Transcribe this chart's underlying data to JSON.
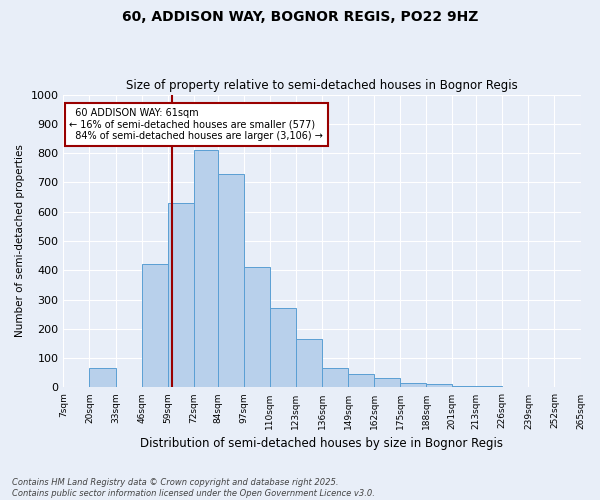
{
  "title": "60, ADDISON WAY, BOGNOR REGIS, PO22 9HZ",
  "subtitle": "Size of property relative to semi-detached houses in Bognor Regis",
  "xlabel": "Distribution of semi-detached houses by size in Bognor Regis",
  "ylabel": "Number of semi-detached properties",
  "bins": [
    7,
    20,
    33,
    46,
    59,
    72,
    84,
    97,
    110,
    123,
    136,
    149,
    162,
    175,
    188,
    201,
    213,
    226,
    239,
    252,
    265
  ],
  "bin_labels": [
    "7sqm",
    "20sqm",
    "33sqm",
    "46sqm",
    "59sqm",
    "72sqm",
    "84sqm",
    "97sqm",
    "110sqm",
    "123sqm",
    "136sqm",
    "149sqm",
    "162sqm",
    "175sqm",
    "188sqm",
    "201sqm",
    "213sqm",
    "226sqm",
    "239sqm",
    "252sqm",
    "265sqm"
  ],
  "counts": [
    2,
    65,
    0,
    420,
    630,
    810,
    730,
    410,
    270,
    165,
    65,
    45,
    32,
    16,
    13,
    5,
    4,
    2,
    1,
    2
  ],
  "property_size": 61,
  "property_label": "60 ADDISON WAY: 61sqm",
  "pct_smaller": 16,
  "pct_larger": 84,
  "n_smaller": 577,
  "n_larger": 3106,
  "bar_facecolor": "#b8d0eb",
  "bar_edgecolor": "#5a9fd4",
  "vline_color": "#990000",
  "annotation_box_facecolor": "#ffffff",
  "annotation_box_edgecolor": "#990000",
  "background_color": "#e8eef8",
  "grid_color": "#ffffff",
  "footer_text": "Contains HM Land Registry data © Crown copyright and database right 2025.\nContains public sector information licensed under the Open Government Licence v3.0.",
  "ylim": [
    0,
    1000
  ],
  "yticks": [
    0,
    100,
    200,
    300,
    400,
    500,
    600,
    700,
    800,
    900,
    1000
  ]
}
